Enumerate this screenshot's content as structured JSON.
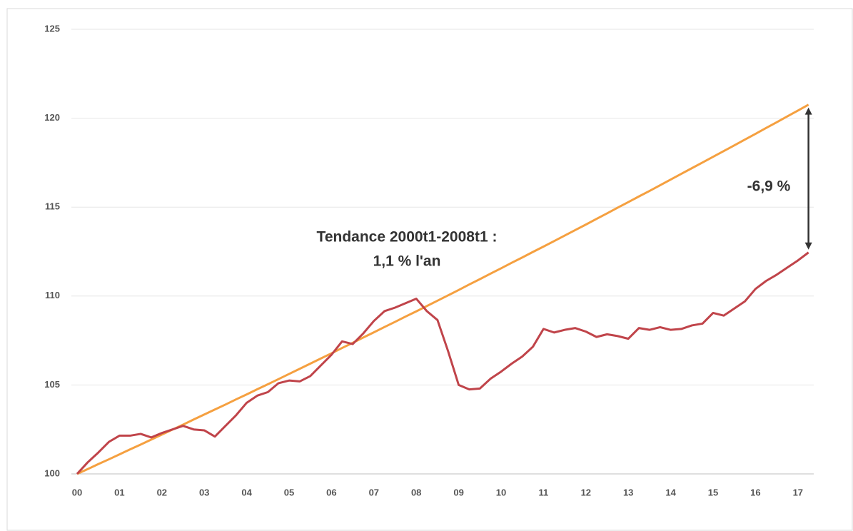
{
  "chart_data": {
    "type": "line",
    "annotations": [
      "Tendance 2000t1-2008t1  :",
      "1,1 % l'an",
      "-6,9 %"
    ],
    "x": [
      0,
      0.25,
      0.5,
      0.75,
      1,
      1.25,
      1.5,
      1.75,
      2,
      2.25,
      2.5,
      2.75,
      3,
      3.25,
      3.5,
      3.75,
      4,
      4.25,
      4.5,
      4.75,
      5,
      5.25,
      5.5,
      5.75,
      6,
      6.25,
      6.5,
      6.75,
      7,
      7.25,
      7.5,
      7.75,
      8,
      8.25,
      8.5,
      8.75,
      9,
      9.25,
      9.5,
      9.75,
      10,
      10.25,
      10.5,
      10.75,
      11,
      11.25,
      11.5,
      11.75,
      12,
      12.25,
      12.5,
      12.75,
      13,
      13.25,
      13.5,
      13.75,
      14,
      14.25,
      14.5,
      14.75,
      15,
      15.25,
      15.5,
      15.75,
      16,
      16.25,
      16.5,
      16.75,
      17,
      17.25
    ],
    "series": [
      {
        "color": "#c0444a",
        "values": [
          100,
          100.65,
          101.2,
          101.8,
          102.15,
          102.15,
          102.25,
          102.05,
          102.3,
          102.5,
          102.7,
          102.5,
          102.45,
          102.1,
          102.7,
          103.3,
          104.0,
          104.4,
          104.6,
          105.1,
          105.25,
          105.2,
          105.5,
          106.1,
          106.7,
          107.45,
          107.3,
          107.9,
          108.6,
          109.15,
          109.35,
          109.6,
          109.85,
          109.15,
          108.65,
          106.9,
          105.0,
          104.75,
          104.8,
          105.35,
          105.75,
          106.2,
          106.6,
          107.15,
          108.15,
          107.95,
          108.1,
          108.2,
          108.0,
          107.7,
          107.85,
          107.75,
          107.6,
          108.2,
          108.1,
          108.25,
          108.1,
          108.15,
          108.35,
          108.45,
          109.05,
          108.9,
          109.3,
          109.7,
          110.4,
          110.85,
          111.2,
          111.6,
          112.0,
          112.45
        ]
      },
      {
        "color": "#f5a040",
        "values": [
          100,
          100.27,
          100.55,
          100.82,
          101.1,
          101.38,
          101.65,
          101.93,
          102.21,
          102.49,
          102.77,
          103.06,
          103.34,
          103.62,
          103.9,
          104.19,
          104.47,
          104.76,
          105.04,
          105.33,
          105.62,
          105.91,
          106.2,
          106.49,
          106.78,
          107.08,
          107.37,
          107.67,
          107.96,
          108.26,
          108.55,
          108.85,
          109.14,
          109.44,
          109.74,
          110.04,
          110.34,
          110.65,
          110.95,
          111.26,
          111.56,
          111.87,
          112.17,
          112.48,
          112.78,
          113.09,
          113.4,
          113.71,
          114.02,
          114.34,
          114.65,
          114.97,
          115.28,
          115.6,
          115.91,
          116.23,
          116.55,
          116.87,
          117.19,
          117.51,
          117.83,
          118.15,
          118.47,
          118.8,
          119.12,
          119.45,
          119.77,
          120.1,
          120.43,
          120.76
        ]
      }
    ],
    "xlim": [
      0,
      17.5
    ],
    "xticks": [
      {
        "value": 0,
        "label": "00"
      },
      {
        "value": 1,
        "label": "01"
      },
      {
        "value": 2,
        "label": "02"
      },
      {
        "value": 3,
        "label": "03"
      },
      {
        "value": 4,
        "label": "04"
      },
      {
        "value": 5,
        "label": "05"
      },
      {
        "value": 6,
        "label": "06"
      },
      {
        "value": 7,
        "label": "07"
      },
      {
        "value": 8,
        "label": "08"
      },
      {
        "value": 9,
        "label": "09"
      },
      10,
      11,
      12,
      13,
      14,
      15,
      16,
      17
    ],
    "ylim": [
      100,
      125
    ],
    "yticks": [
      100,
      105,
      110,
      115,
      120,
      125
    ],
    "grid": true
  }
}
